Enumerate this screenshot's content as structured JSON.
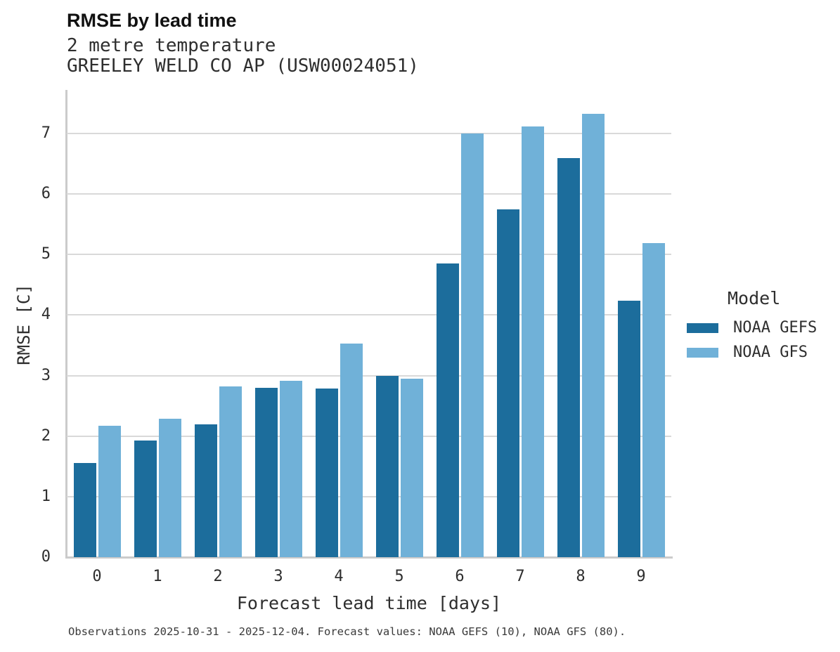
{
  "title": "RMSE by lead time",
  "subtitle_line1": "2 metre temperature",
  "subtitle_line2": "GREELEY WELD CO AP (USW00024051)",
  "caption": "Observations 2025-10-31 - 2025-12-04. Forecast values: NOAA GEFS (10), NOAA GFS (80).",
  "legend": {
    "title": "Model",
    "items": [
      {
        "label": "NOAA GEFS",
        "color": "#1c6d9c"
      },
      {
        "label": "NOAA GFS",
        "color": "#70b1d8"
      }
    ]
  },
  "colors": {
    "gefs_dark_blue": "#1c6d9c",
    "gfs_light_blue": "#70b1d8",
    "gridline_gray": "#d9d9d9",
    "spine_gray": "#cbcbcb"
  },
  "chart_data": {
    "type": "bar",
    "title": "RMSE by lead time",
    "subtitle": [
      "2 metre temperature",
      "GREELEY WELD CO AP (USW00024051)"
    ],
    "caption": "Observations 2025-10-31 - 2025-12-04. Forecast values: NOAA GEFS (10), NOAA GFS (80).",
    "categories": [
      "0",
      "1",
      "2",
      "3",
      "4",
      "5",
      "6",
      "7",
      "8",
      "9"
    ],
    "series": [
      {
        "name": "NOAA GEFS",
        "color": "#1c6d9c",
        "values": [
          1.56,
          1.93,
          2.2,
          2.8,
          2.79,
          2.99,
          4.85,
          5.75,
          6.59,
          4.24
        ]
      },
      {
        "name": "NOAA GFS",
        "color": "#70b1d8",
        "values": [
          2.17,
          2.29,
          2.82,
          2.91,
          3.53,
          2.95,
          7.0,
          7.12,
          7.33,
          5.19
        ]
      }
    ],
    "xlabel": "Forecast lead time [days]",
    "ylabel": "RMSE [C]",
    "ylim": [
      0,
      7.72
    ],
    "yticks": [
      0,
      1,
      2,
      3,
      4,
      5,
      6,
      7
    ],
    "grid": true,
    "legend_title": "Model",
    "legend_position": "right",
    "bar_grouping": "grouped"
  }
}
